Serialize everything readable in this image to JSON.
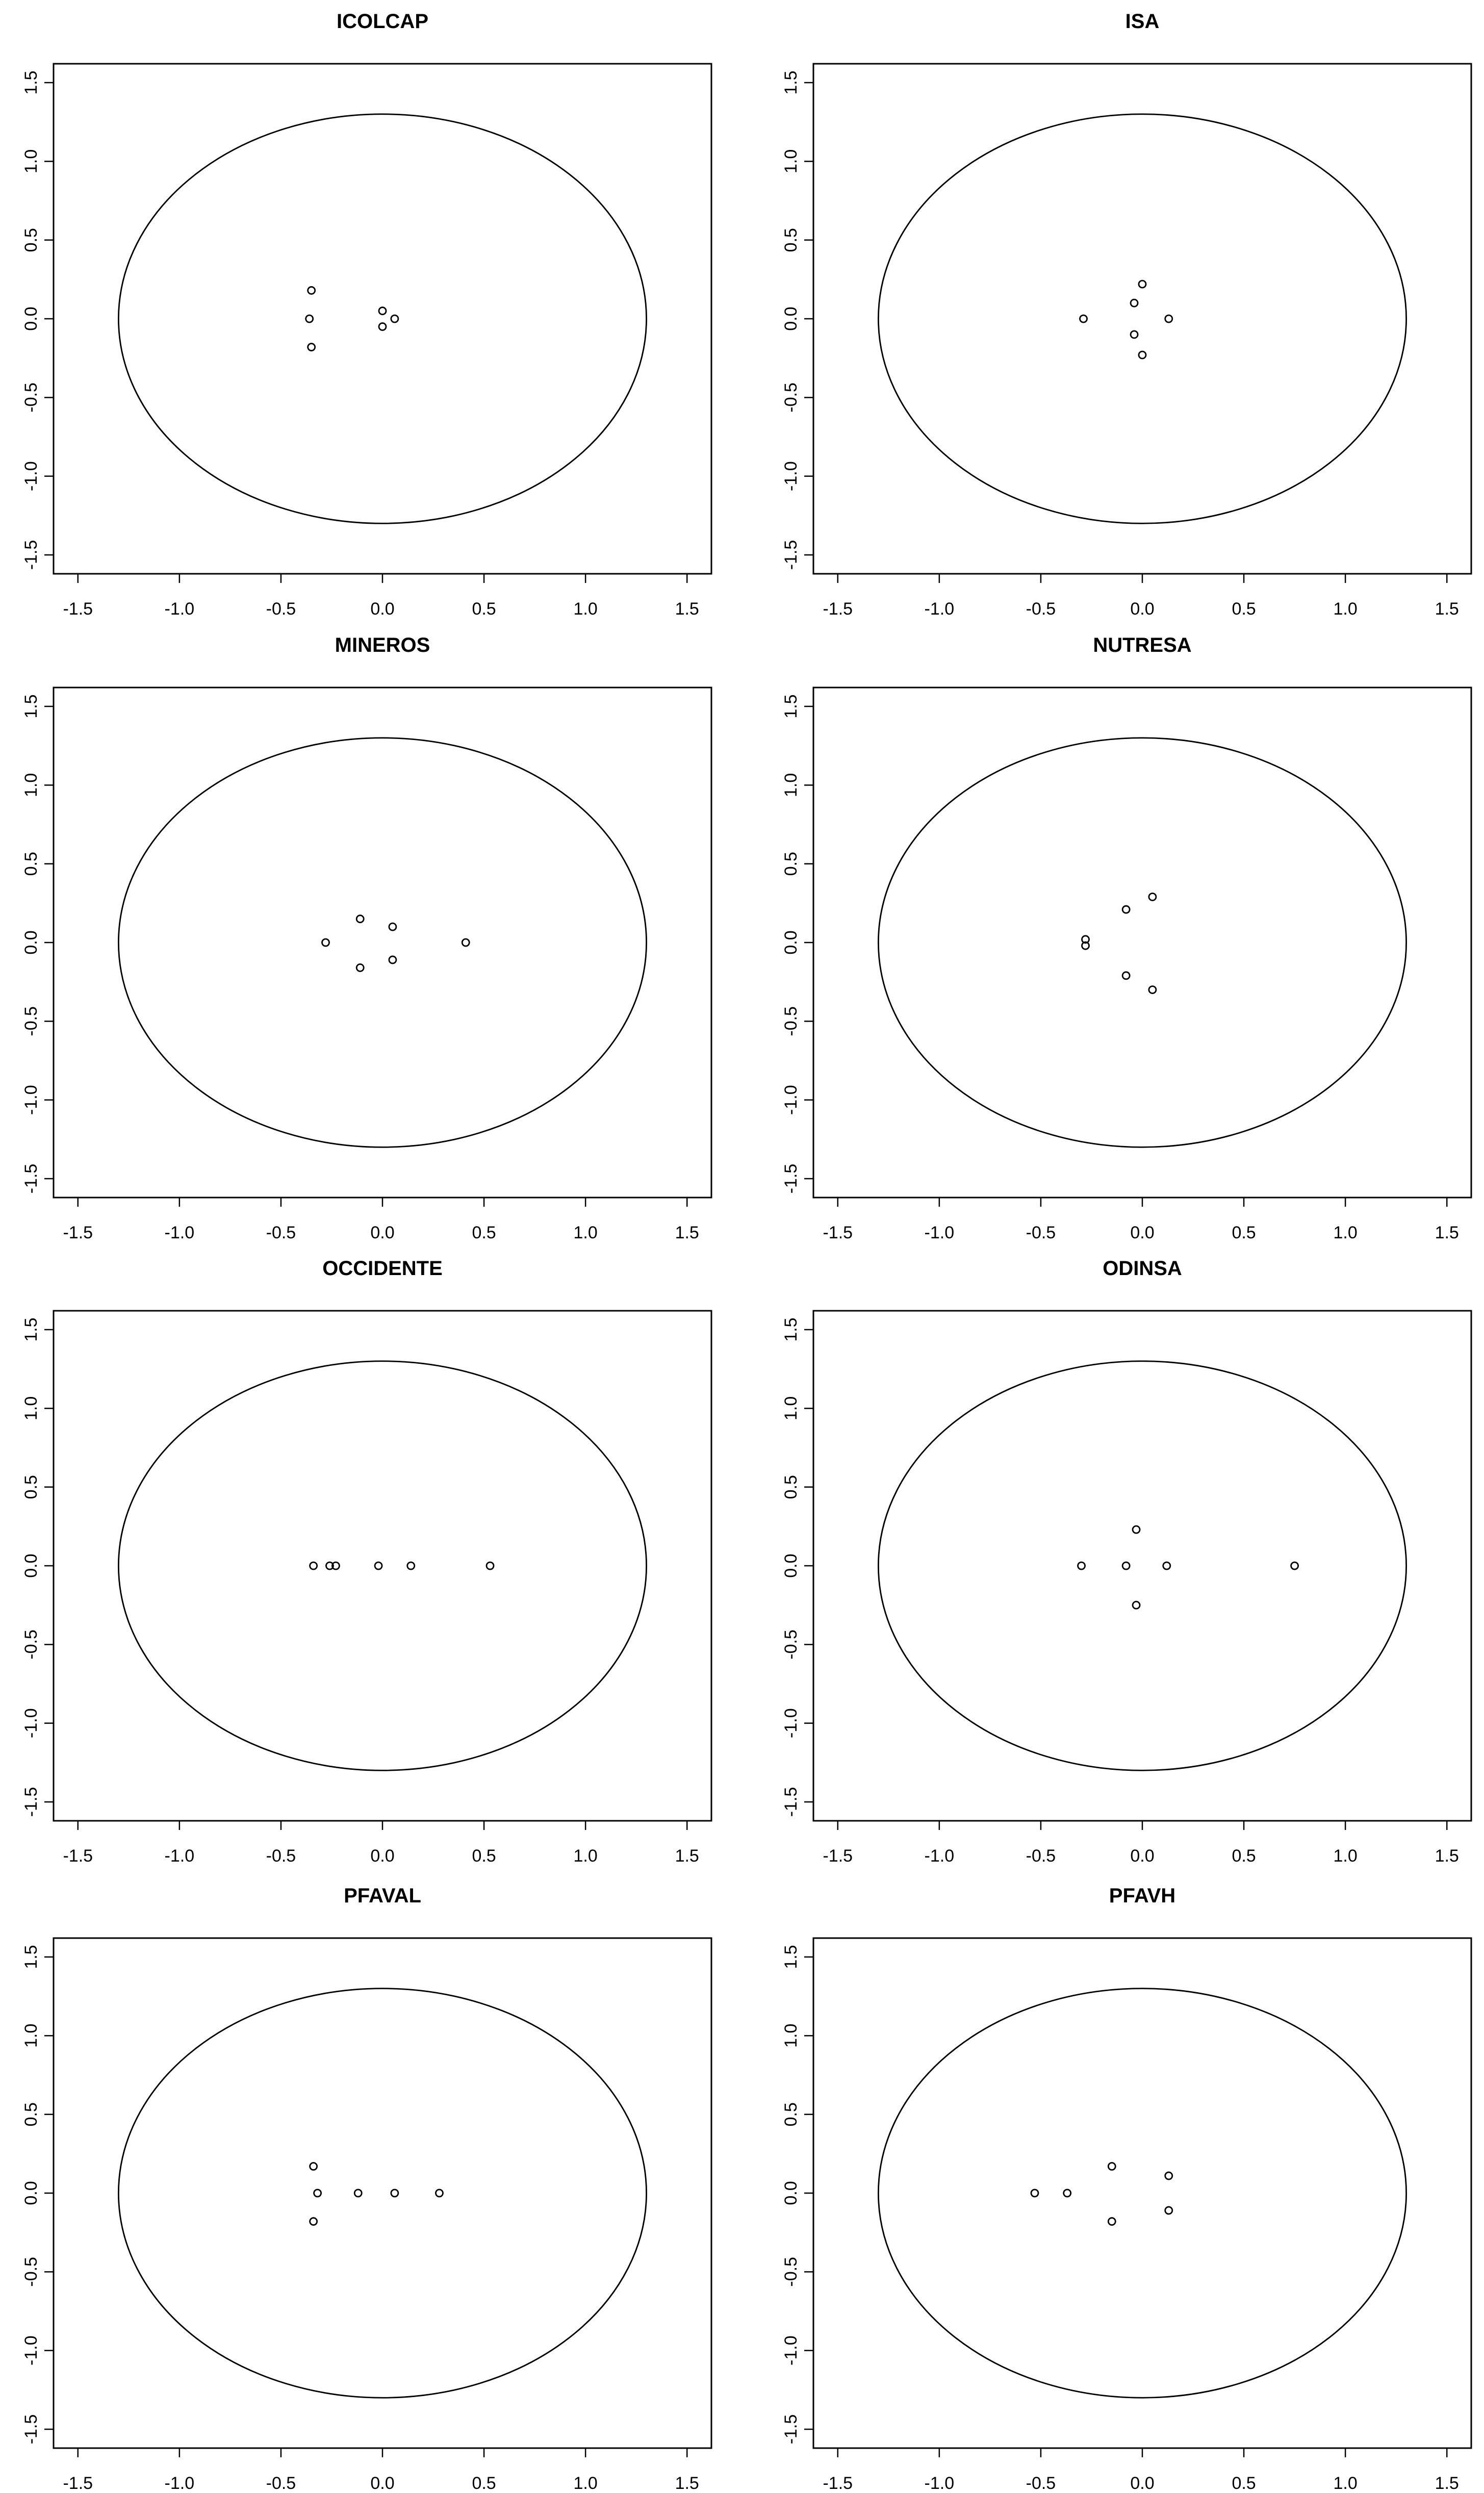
{
  "colors": {
    "foreground": "#000000",
    "background": "#ffffff"
  },
  "chart_data": [
    {
      "type": "scatter",
      "title": "ICOLCAP",
      "xlim": [
        -1.5,
        1.5
      ],
      "ylim": [
        -1.5,
        1.5
      ],
      "x_ticks": [
        "-1.5",
        "-1.0",
        "-0.5",
        "0.0",
        "0.5",
        "1.0",
        "1.5"
      ],
      "y_ticks": [
        "-1.5",
        "-1.0",
        "-0.5",
        "0.0",
        "0.5",
        "1.0",
        "1.5"
      ],
      "circle_radius": 1.3,
      "grid": false,
      "points": [
        [
          -0.35,
          0.18
        ],
        [
          -0.36,
          0.0
        ],
        [
          -0.35,
          -0.18
        ],
        [
          0.0,
          0.05
        ],
        [
          0.0,
          -0.05
        ],
        [
          0.06,
          0.0
        ]
      ]
    },
    {
      "type": "scatter",
      "title": "ISA",
      "xlim": [
        -1.5,
        1.5
      ],
      "ylim": [
        -1.5,
        1.5
      ],
      "x_ticks": [
        "-1.5",
        "-1.0",
        "-0.5",
        "0.0",
        "0.5",
        "1.0",
        "1.5"
      ],
      "y_ticks": [
        "-1.5",
        "-1.0",
        "-0.5",
        "0.0",
        "0.5",
        "1.0",
        "1.5"
      ],
      "circle_radius": 1.3,
      "grid": false,
      "points": [
        [
          -0.29,
          0.0
        ],
        [
          0.0,
          0.22
        ],
        [
          -0.04,
          0.1
        ],
        [
          -0.04,
          -0.1
        ],
        [
          0.0,
          -0.23
        ],
        [
          0.13,
          0.0
        ]
      ]
    },
    {
      "type": "scatter",
      "title": "MINEROS",
      "xlim": [
        -1.5,
        1.5
      ],
      "ylim": [
        -1.5,
        1.5
      ],
      "x_ticks": [
        "-1.5",
        "-1.0",
        "-0.5",
        "0.0",
        "0.5",
        "1.0",
        "1.5"
      ],
      "y_ticks": [
        "-1.5",
        "-1.0",
        "-0.5",
        "0.0",
        "0.5",
        "1.0",
        "1.5"
      ],
      "circle_radius": 1.3,
      "grid": false,
      "points": [
        [
          -0.28,
          0.0
        ],
        [
          -0.11,
          0.15
        ],
        [
          -0.11,
          -0.16
        ],
        [
          0.05,
          0.1
        ],
        [
          0.05,
          -0.11
        ],
        [
          0.41,
          0.0
        ]
      ]
    },
    {
      "type": "scatter",
      "title": "NUTRESA",
      "xlim": [
        -1.5,
        1.5
      ],
      "ylim": [
        -1.5,
        1.5
      ],
      "x_ticks": [
        "-1.5",
        "-1.0",
        "-0.5",
        "0.0",
        "0.5",
        "1.0",
        "1.5"
      ],
      "y_ticks": [
        "-1.5",
        "-1.0",
        "-0.5",
        "0.0",
        "0.5",
        "1.0",
        "1.5"
      ],
      "circle_radius": 1.3,
      "grid": false,
      "points": [
        [
          -0.28,
          0.02
        ],
        [
          -0.28,
          -0.02
        ],
        [
          -0.08,
          0.21
        ],
        [
          -0.08,
          -0.21
        ],
        [
          0.05,
          0.29
        ],
        [
          0.05,
          -0.3
        ]
      ]
    },
    {
      "type": "scatter",
      "title": "OCCIDENTE",
      "xlim": [
        -1.5,
        1.5
      ],
      "ylim": [
        -1.5,
        1.5
      ],
      "x_ticks": [
        "-1.5",
        "-1.0",
        "-0.5",
        "0.0",
        "0.5",
        "1.0",
        "1.5"
      ],
      "y_ticks": [
        "-1.5",
        "-1.0",
        "-0.5",
        "0.0",
        "0.5",
        "1.0",
        "1.5"
      ],
      "circle_radius": 1.3,
      "grid": false,
      "points": [
        [
          -0.34,
          0.0
        ],
        [
          -0.26,
          0.0
        ],
        [
          -0.23,
          0.0
        ],
        [
          -0.02,
          0.0
        ],
        [
          0.14,
          0.0
        ],
        [
          0.53,
          0.0
        ]
      ]
    },
    {
      "type": "scatter",
      "title": "ODINSA",
      "xlim": [
        -1.5,
        1.5
      ],
      "ylim": [
        -1.5,
        1.5
      ],
      "x_ticks": [
        "-1.5",
        "-1.0",
        "-0.5",
        "0.0",
        "0.5",
        "1.0",
        "1.5"
      ],
      "y_ticks": [
        "-1.5",
        "-1.0",
        "-0.5",
        "0.0",
        "0.5",
        "1.0",
        "1.5"
      ],
      "circle_radius": 1.3,
      "grid": false,
      "points": [
        [
          -0.3,
          0.0
        ],
        [
          -0.08,
          0.0
        ],
        [
          -0.03,
          0.23
        ],
        [
          -0.03,
          -0.25
        ],
        [
          0.12,
          0.0
        ],
        [
          0.75,
          0.0
        ]
      ]
    },
    {
      "type": "scatter",
      "title": "PFAVAL",
      "xlim": [
        -1.5,
        1.5
      ],
      "ylim": [
        -1.5,
        1.5
      ],
      "x_ticks": [
        "-1.5",
        "-1.0",
        "-0.5",
        "0.0",
        "0.5",
        "1.0",
        "1.5"
      ],
      "y_ticks": [
        "-1.5",
        "-1.0",
        "-0.5",
        "0.0",
        "0.5",
        "1.0",
        "1.5"
      ],
      "circle_radius": 1.3,
      "grid": false,
      "points": [
        [
          -0.34,
          0.17
        ],
        [
          -0.32,
          0.0
        ],
        [
          -0.34,
          -0.18
        ],
        [
          -0.12,
          0.0
        ],
        [
          0.06,
          0.0
        ],
        [
          0.28,
          0.0
        ]
      ]
    },
    {
      "type": "scatter",
      "title": "PFAVH",
      "xlim": [
        -1.5,
        1.5
      ],
      "ylim": [
        -1.5,
        1.5
      ],
      "x_ticks": [
        "-1.5",
        "-1.0",
        "-0.5",
        "0.0",
        "0.5",
        "1.0",
        "1.5"
      ],
      "y_ticks": [
        "-1.5",
        "-1.0",
        "-0.5",
        "0.0",
        "0.5",
        "1.0",
        "1.5"
      ],
      "circle_radius": 1.3,
      "grid": false,
      "points": [
        [
          -0.53,
          0.0
        ],
        [
          -0.37,
          0.0
        ],
        [
          -0.15,
          0.17
        ],
        [
          -0.15,
          -0.18
        ],
        [
          0.13,
          0.11
        ],
        [
          0.13,
          -0.11
        ]
      ]
    }
  ]
}
